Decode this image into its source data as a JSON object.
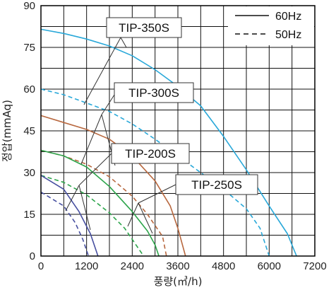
{
  "chart_data": {
    "type": "line",
    "xlabel": "풍량(㎥/h)",
    "ylabel": "정압(mmAq)",
    "xlim": [
      0,
      7200
    ],
    "ylim": [
      0,
      90
    ],
    "x_ticks": [
      "0",
      "1200",
      "2400",
      "3600",
      "4800",
      "6000",
      "7200"
    ],
    "y_ticks": [
      "0",
      "15",
      "30",
      "45",
      "60",
      "75",
      "90"
    ],
    "grid": true,
    "legend": {
      "position": "top-right",
      "entries": [
        {
          "label": "60Hz",
          "style": "solid"
        },
        {
          "label": "50Hz",
          "style": "dashed"
        }
      ]
    },
    "series": [
      {
        "name": "TIP-350S",
        "hz": "60Hz",
        "color": "#29a8d9",
        "dashed": false,
        "points": [
          [
            0,
            81.5
          ],
          [
            600,
            80
          ],
          [
            1200,
            78
          ],
          [
            1800,
            75.5
          ],
          [
            2400,
            72
          ],
          [
            3000,
            67
          ],
          [
            3600,
            61
          ],
          [
            4200,
            54
          ],
          [
            4800,
            43
          ],
          [
            5400,
            31
          ],
          [
            6000,
            18
          ],
          [
            6480,
            8
          ],
          [
            6720,
            0
          ]
        ]
      },
      {
        "name": "TIP-350S",
        "hz": "50Hz",
        "color": "#29a8d9",
        "dashed": true,
        "points": [
          [
            0,
            60
          ],
          [
            600,
            58
          ],
          [
            1200,
            55
          ],
          [
            1800,
            52
          ],
          [
            2400,
            47.5
          ],
          [
            3000,
            42
          ],
          [
            3600,
            36
          ],
          [
            4200,
            30
          ],
          [
            4800,
            24
          ],
          [
            5400,
            17
          ],
          [
            5760,
            10
          ],
          [
            6000,
            0
          ]
        ]
      },
      {
        "name": "TIP-300S",
        "hz": "60Hz",
        "color": "#b8683f",
        "dashed": false,
        "points": [
          [
            0,
            50.5
          ],
          [
            600,
            48
          ],
          [
            1200,
            45.5
          ],
          [
            1800,
            42
          ],
          [
            2400,
            36
          ],
          [
            3000,
            27
          ],
          [
            3400,
            18
          ],
          [
            3600,
            10
          ],
          [
            3800,
            0
          ]
        ]
      },
      {
        "name": "TIP-300S",
        "hz": "50Hz",
        "color": "#b8683f",
        "dashed": true,
        "points": [
          [
            0,
            38
          ],
          [
            600,
            36
          ],
          [
            1200,
            33
          ],
          [
            1800,
            28.5
          ],
          [
            2400,
            21.5
          ],
          [
            2800,
            15
          ],
          [
            3200,
            7
          ],
          [
            3300,
            0
          ]
        ]
      },
      {
        "name": "TIP-200S",
        "hz": "60Hz",
        "color": "#2ca44a",
        "dashed": false,
        "points": [
          [
            0,
            38
          ],
          [
            600,
            36
          ],
          [
            1200,
            32
          ],
          [
            1800,
            25
          ],
          [
            2400,
            16
          ],
          [
            2800,
            9
          ],
          [
            3000,
            4
          ],
          [
            3100,
            0
          ]
        ]
      },
      {
        "name": "TIP-200S",
        "hz": "50Hz",
        "color": "#2ca44a",
        "dashed": true,
        "points": [
          [
            0,
            29
          ],
          [
            600,
            26.5
          ],
          [
            1200,
            22
          ],
          [
            1800,
            15.5
          ],
          [
            2200,
            10
          ],
          [
            2500,
            4
          ],
          [
            2700,
            0
          ]
        ]
      },
      {
        "name": "TIP-250S",
        "hz": "60Hz",
        "color": "#474fa0",
        "dashed": false,
        "points": [
          [
            0,
            29
          ],
          [
            600,
            24
          ],
          [
            1000,
            16
          ],
          [
            1300,
            8
          ],
          [
            1500,
            0
          ]
        ]
      },
      {
        "name": "TIP-250S",
        "hz": "50Hz",
        "color": "#474fa0",
        "dashed": true,
        "points": [
          [
            0,
            23
          ],
          [
            600,
            18
          ],
          [
            900,
            12
          ],
          [
            1100,
            6
          ],
          [
            1250,
            0
          ]
        ]
      }
    ],
    "annotations": [
      {
        "label": "TIP-350S"
      },
      {
        "label": "TIP-300S"
      },
      {
        "label": "TIP-200S"
      },
      {
        "label": "TIP-250S"
      }
    ]
  }
}
